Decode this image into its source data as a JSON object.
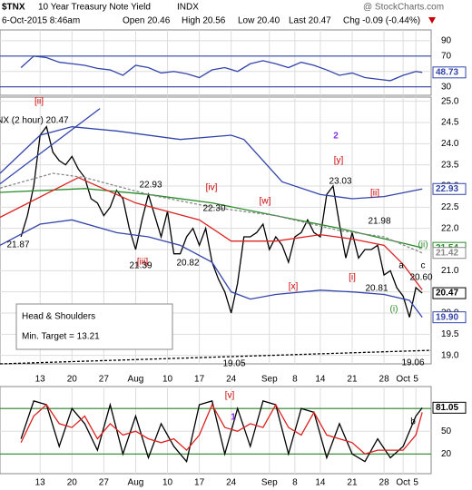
{
  "header": {
    "symbol": "$TNX",
    "name": "10 Year Treasury Note Yield",
    "exchange": "INDX",
    "watermark": "@ StockCharts.com",
    "date": "6-Oct-2015 8:46am",
    "open": "Open 20.46",
    "high": "High 20.56",
    "low": "Low 20.40",
    "last": "Last 20.47",
    "change": "Chg -0.09 (-0.44%)"
  },
  "chart_data": [
    {
      "type": "line",
      "panel": "rsi",
      "ylim": [
        19,
        104
      ],
      "yticks": [
        30,
        50,
        70,
        90
      ],
      "bands": [
        30,
        70
      ],
      "band_color": "#3344aa",
      "x": [
        0,
        2,
        4,
        6,
        8,
        10,
        12,
        14,
        16,
        18,
        20,
        22,
        24,
        26,
        28,
        30,
        32,
        34,
        36,
        38,
        40,
        42,
        44,
        46,
        48,
        50,
        52,
        54,
        56,
        58,
        60,
        62,
        63
      ],
      "series": [
        {
          "name": "RSI",
          "color": "#3344aa",
          "values": [
            55,
            70,
            68,
            62,
            60,
            58,
            54,
            52,
            45,
            58,
            55,
            48,
            50,
            47,
            42,
            52,
            55,
            50,
            60,
            64,
            60,
            55,
            62,
            58,
            52,
            45,
            48,
            42,
            40,
            38,
            45,
            50,
            48.73
          ]
        }
      ],
      "end_labels": [
        {
          "value": 48.73,
          "label": "48.73",
          "color": "#3344aa"
        }
      ]
    },
    {
      "type": "price",
      "panel": "main",
      "xlim": [
        -3.3,
        64.4
      ],
      "ylim": [
        18.8,
        25.1
      ],
      "yticks": [
        {
          "value": 19,
          "label": "19.0"
        },
        {
          "value": 19.5,
          "label": "19.5"
        },
        {
          "value": 20,
          "label": "20.0"
        },
        {
          "value": 20.5,
          "label": "20.5"
        },
        {
          "value": 21,
          "label": "21.0"
        },
        {
          "value": 21.5,
          "label": "21.5"
        },
        {
          "value": 22,
          "label": "22.0"
        },
        {
          "value": 22.5,
          "label": "22.5"
        },
        {
          "value": 23,
          "label": "23.0"
        },
        {
          "value": 23.5,
          "label": "23.5"
        },
        {
          "value": 24,
          "label": "24.0"
        },
        {
          "value": 24.5,
          "label": "24.5"
        },
        {
          "value": 25,
          "label": "25.0"
        }
      ],
      "categories": [
        null,
        null,
        null,
        "13",
        null,
        null,
        null,
        null,
        "20",
        null,
        null,
        null,
        null,
        "27",
        null,
        null,
        null,
        null,
        "Aug",
        null,
        null,
        null,
        null,
        "10",
        null,
        null,
        null,
        null,
        "17",
        null,
        null,
        null,
        null,
        "24",
        null,
        null,
        null,
        null,
        null,
        "Sep",
        null,
        null,
        null,
        "8",
        null,
        null,
        null,
        "14",
        null,
        null,
        null,
        null,
        "21",
        null,
        null,
        null,
        null,
        "28",
        null,
        null,
        "Oct",
        null,
        "5",
        null
      ],
      "series": [
        {
          "name": "$TNX (2 hour) 20.47",
          "color": "#000000",
          "values": [
            21.8,
            22.3,
            23.0,
            24.2,
            24.4,
            23.8,
            23.6,
            23.5,
            23.7,
            23.4,
            23.2,
            22.7,
            22.6,
            22.3,
            22.5,
            22.9,
            22.7,
            22.0,
            21.5,
            22.2,
            22.8,
            22.3,
            21.8,
            22.4,
            21.4,
            21.4,
            21.8,
            22.0,
            21.6,
            22.0,
            21.2,
            20.8,
            20.5,
            20.0,
            20.7,
            21.8,
            21.8,
            21.9,
            22.1,
            21.5,
            21.8,
            21.6,
            21.2,
            21.8,
            21.9,
            22.2,
            21.9,
            21.8,
            22.8,
            23.0,
            22.1,
            21.3,
            21.9,
            21.3,
            21.5,
            21.5,
            21.6,
            20.9,
            21.0,
            20.6,
            20.4,
            19.9,
            20.6,
            20.47
          ]
        },
        {
          "color": "#3344aa",
          "x": [
            -3.3,
            3,
            8,
            15,
            25,
            33,
            35,
            41,
            47,
            52,
            57,
            63
          ],
          "values": [
            23.3,
            24.2,
            24.4,
            24.3,
            24.1,
            24.2,
            24.1,
            23.1,
            22.8,
            22.7,
            22.75,
            22.93
          ]
        },
        {
          "color": "#2a8a2a",
          "x": [
            -3.3,
            10,
            20,
            30,
            40,
            50,
            60,
            63
          ],
          "values": [
            22.85,
            22.94,
            22.8,
            22.6,
            22.3,
            22.0,
            21.65,
            21.54
          ]
        },
        {
          "color": "#888888",
          "dash": true,
          "x": [
            -3.3,
            5,
            10,
            20,
            30,
            40,
            50,
            57,
            63
          ],
          "values": [
            22.95,
            23.3,
            23.2,
            22.8,
            22.5,
            22.3,
            21.95,
            21.8,
            21.42
          ]
        },
        {
          "color": "#dd2222",
          "x": [
            -3.3,
            9,
            18,
            28,
            33,
            40,
            47,
            52,
            57,
            60,
            63
          ],
          "values": [
            22.26,
            23.2,
            22.6,
            22.2,
            21.7,
            21.7,
            21.85,
            21.75,
            21.6,
            21.15,
            20.55
          ]
        },
        {
          "color": "#3344aa",
          "x": [
            -3.3,
            3,
            8,
            15,
            20,
            25,
            30,
            33,
            36,
            40,
            47,
            52,
            57,
            61,
            63
          ],
          "values": [
            21.6,
            22.1,
            22.2,
            21.9,
            21.8,
            21.6,
            21.2,
            20.5,
            20.33,
            20.44,
            20.54,
            20.5,
            20.44,
            20.3,
            19.9
          ]
        },
        {
          "color": "#000000",
          "dash": true,
          "x": [
            -3.3,
            64.4
          ],
          "values": [
            18.8,
            19.12
          ]
        },
        {
          "color": "#3344aa",
          "x": [
            -3.3,
            12.4
          ],
          "values": [
            23.05,
            24.83
          ]
        }
      ],
      "end_labels": [
        {
          "value": 22.93,
          "label": "22.93",
          "color": "#3344aa"
        },
        {
          "value": 21.54,
          "label": "21.54",
          "color": "#2a8a2a"
        },
        {
          "value": 21.42,
          "label": "21.42",
          "color": "#888888"
        },
        {
          "value": 20.47,
          "label": "20.47",
          "color": "#000000"
        },
        {
          "value": 19.9,
          "label": "19.90",
          "color": "#3344aa"
        }
      ],
      "annotations": [
        {
          "text": "[ii]",
          "color": "#cc0000"
        },
        {
          "text": "$TNX (2 hour) 20.47",
          "color": "#000000"
        },
        {
          "text": "2",
          "color": "#8a2be2"
        },
        {
          "text": "[y]",
          "color": "#cc0000"
        },
        {
          "text": "[iv]",
          "color": "#cc0000"
        },
        {
          "text": "[w]",
          "color": "#cc0000"
        },
        {
          "text": "[ii]",
          "color": "#cc0000"
        },
        {
          "text": "[iii]",
          "color": "#cc0000"
        },
        {
          "text": "[x]",
          "color": "#cc0000"
        },
        {
          "text": "[i]",
          "color": "#cc0000"
        },
        {
          "text": "a",
          "color": "#000000"
        },
        {
          "text": "(ii)",
          "color": "#2a8a2a"
        },
        {
          "text": "c",
          "color": "#000000"
        },
        {
          "text": "(i)",
          "color": "#2a8a2a"
        },
        {
          "text": "21.87",
          "color": "#000000"
        },
        {
          "text": "22.93",
          "color": "#000000"
        },
        {
          "text": "22.30",
          "color": "#000000"
        },
        {
          "text": "21.39",
          "color": "#000000"
        },
        {
          "text": "20.82",
          "color": "#000000"
        },
        {
          "text": "19.05",
          "color": "#000000"
        },
        {
          "text": "23.03",
          "color": "#000000"
        },
        {
          "text": "21.98",
          "color": "#000000"
        },
        {
          "text": "20.81",
          "color": "#000000"
        },
        {
          "text": "20.60",
          "color": "#000000"
        },
        {
          "text": "19.06",
          "color": "#000000"
        }
      ],
      "note": [
        "Head & Shoulders",
        "Min. Target = 13.21"
      ]
    },
    {
      "type": "line",
      "panel": "stoch",
      "ylim": [
        -6,
        109
      ],
      "yticks": [
        20,
        50,
        80
      ],
      "bands": [
        20,
        80
      ],
      "band_color": "#2a8a2a",
      "x": [
        0,
        2,
        4,
        6,
        8,
        10,
        12,
        14,
        16,
        18,
        20,
        22,
        24,
        26,
        28,
        30,
        32,
        34,
        36,
        38,
        40,
        42,
        44,
        46,
        48,
        50,
        52,
        54,
        56,
        58,
        60,
        62,
        63
      ],
      "series": [
        {
          "color": "#000000",
          "values": [
            40,
            90,
            85,
            30,
            80,
            60,
            25,
            85,
            20,
            70,
            15,
            60,
            30,
            10,
            85,
            90,
            20,
            80,
            30,
            90,
            85,
            20,
            80,
            75,
            15,
            60,
            20,
            10,
            40,
            15,
            30,
            70,
            81.05
          ]
        },
        {
          "color": "#dd2222",
          "values": [
            35,
            70,
            85,
            60,
            55,
            70,
            40,
            60,
            45,
            50,
            40,
            35,
            40,
            25,
            45,
            85,
            55,
            50,
            60,
            55,
            85,
            55,
            45,
            75,
            45,
            40,
            35,
            20,
            25,
            25,
            25,
            45,
            75
          ]
        }
      ],
      "end_labels": [
        {
          "value": 81.05,
          "label": "81.05",
          "color": "#000000"
        }
      ],
      "annotations": [
        {
          "text": "[v]",
          "color": "#cc0000"
        },
        {
          "text": "1",
          "color": "#8a2be2"
        },
        {
          "text": "b",
          "color": "#000000"
        }
      ]
    }
  ]
}
